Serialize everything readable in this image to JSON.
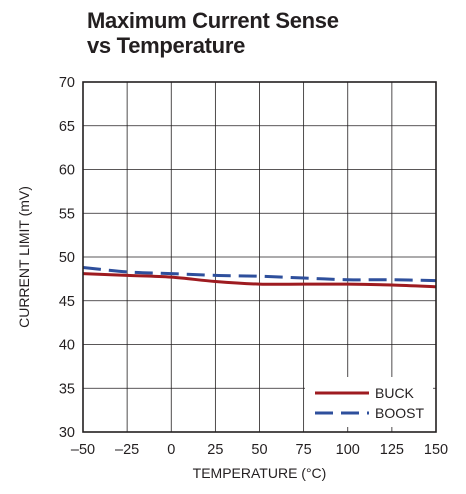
{
  "chart_data": {
    "type": "line",
    "title_line1": "Maximum Current Sense",
    "title_line2": "vs Temperature",
    "xlabel": "TEMPERATURE (°C)",
    "ylabel": "CURRENT LIMIT (mV)",
    "xlim": [
      -50,
      150
    ],
    "ylim": [
      30,
      70
    ],
    "x_ticks": [
      "–50",
      "–25",
      "0",
      "25",
      "50",
      "75",
      "100",
      "125",
      "150"
    ],
    "x_tick_values": [
      -50,
      -25,
      0,
      25,
      50,
      75,
      100,
      125,
      150
    ],
    "y_ticks": [
      "30",
      "35",
      "40",
      "45",
      "50",
      "55",
      "60",
      "65",
      "70"
    ],
    "y_tick_values": [
      30,
      35,
      40,
      45,
      50,
      55,
      60,
      65,
      70
    ],
    "grid": true,
    "legend_position": "bottom-right",
    "series": [
      {
        "name": "BUCK",
        "color": "#9e1b20",
        "dash": "solid",
        "x": [
          -50,
          -25,
          0,
          25,
          50,
          75,
          100,
          125,
          150
        ],
        "values": [
          48.1,
          47.9,
          47.7,
          47.2,
          46.9,
          46.9,
          46.9,
          46.8,
          46.6
        ]
      },
      {
        "name": "BOOST",
        "color": "#2e4f9c",
        "dash": "dashed",
        "x": [
          -50,
          -25,
          0,
          25,
          50,
          75,
          100,
          125,
          150
        ],
        "values": [
          48.8,
          48.3,
          48.1,
          47.9,
          47.8,
          47.6,
          47.4,
          47.4,
          47.3
        ]
      }
    ]
  }
}
